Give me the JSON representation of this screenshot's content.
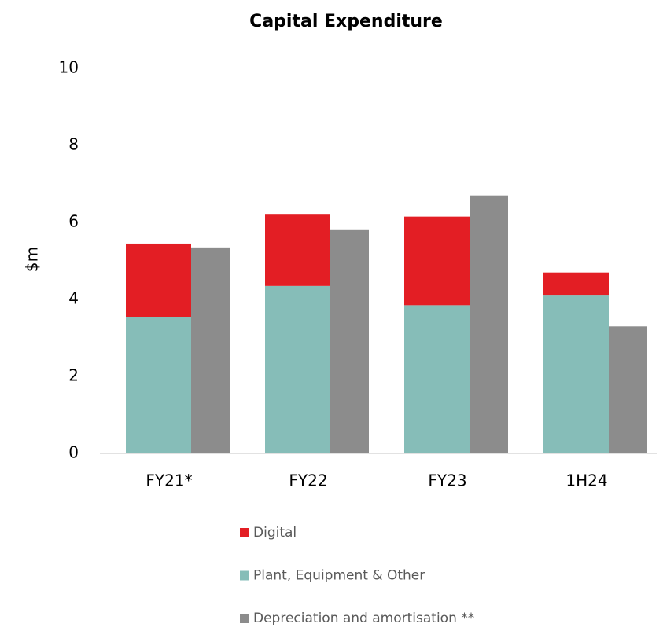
{
  "chart_data": {
    "type": "bar",
    "title": "Capital Expenditure",
    "y_label": "$m",
    "categories": [
      "FY21*",
      "FY22",
      "FY23",
      "1H24"
    ],
    "series": [
      {
        "name": "Digital",
        "color": "#e31e24",
        "stack": 0,
        "values": [
          1.9,
          1.85,
          2.3,
          0.6
        ]
      },
      {
        "name": "Plant, Equipment & Other",
        "color": "#86bdb8",
        "stack": 0,
        "values": [
          3.55,
          4.35,
          3.85,
          4.1
        ]
      },
      {
        "name": "Depreciation and amortisation **",
        "color": "#8c8c8c",
        "stack": 1,
        "values": [
          5.35,
          5.8,
          6.7,
          3.3
        ]
      }
    ],
    "ylim": [
      0,
      10
    ],
    "yticks": [
      0,
      2,
      4,
      6,
      8,
      10
    ],
    "grid": false,
    "legend": "bottom"
  }
}
